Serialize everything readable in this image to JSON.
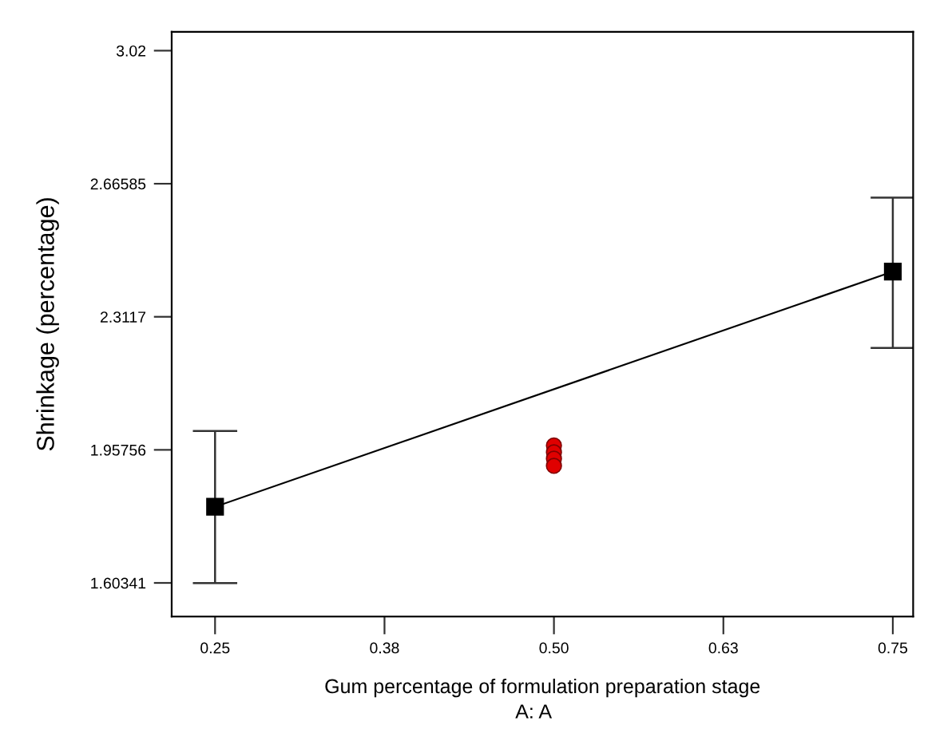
{
  "chart_data": {
    "type": "line",
    "xlabel": "Gum percentage of formulation preparation stage",
    "ylabel": "Shrinkage (percentage)",
    "annotations": [
      "A: A"
    ],
    "xlim": [
      0.218,
      0.765
    ],
    "xticks": [
      0.25,
      {
        "value": 0.375,
        "label": "0.38"
      },
      {
        "value": 0.5,
        "label": "0.50"
      },
      {
        "value": 0.625,
        "label": "0.63"
      },
      0.75
    ],
    "ylim": [
      1.514,
      3.07
    ],
    "yticks": [
      1.60341,
      1.95756,
      2.3117,
      2.66585,
      3.02
    ],
    "grid": false,
    "legend": false,
    "series": [
      {
        "color": "#000000",
        "marker": "square",
        "x": [
          0.25,
          0.75
        ],
        "values": [
          1.806,
          2.432
        ],
        "errors": [
          [
            1.603,
            2.008
          ],
          [
            2.229,
            2.629
          ]
        ]
      },
      {
        "type": "scatter",
        "color": "#e00000",
        "marker": "circle",
        "x": [
          0.5,
          0.5,
          0.5,
          0.5
        ],
        "values": [
          1.969,
          1.951,
          1.934,
          1.915
        ]
      }
    ]
  }
}
